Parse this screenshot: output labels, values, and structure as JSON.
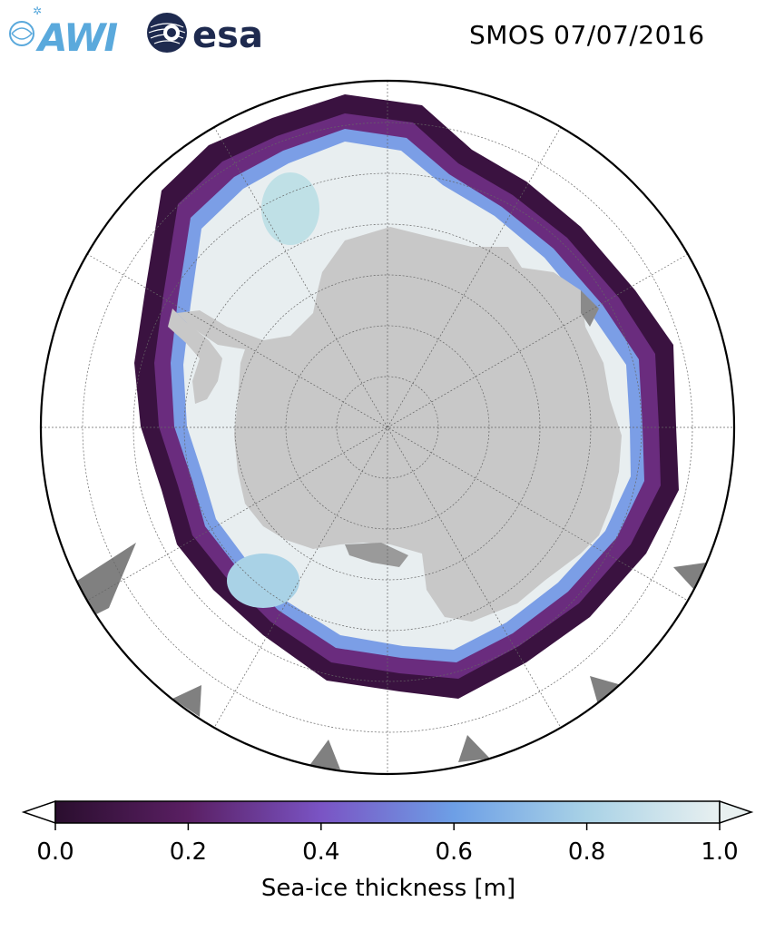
{
  "header": {
    "logos": [
      {
        "name": "awi-logo",
        "text": "AWI",
        "color": "#5aa9dc"
      },
      {
        "name": "esa-logo",
        "text": "esa",
        "color": "#1e2a4f"
      }
    ],
    "title": "SMOS 07/07/2016"
  },
  "map": {
    "projection": "south-polar-stereographic",
    "land_color": "#c8c8c8",
    "ocean_color": "#ffffff",
    "grid": true
  },
  "colorbar": {
    "label": "Sea-ice thickness [m]",
    "min": 0.0,
    "max": 1.0,
    "ticks": [
      "0.0",
      "0.2",
      "0.4",
      "0.6",
      "0.8",
      "1.0"
    ],
    "extend": "both",
    "colors": [
      "#2a0e2e",
      "#5a1f63",
      "#7a54c4",
      "#6d9fe6",
      "#a9d2e6",
      "#e8f0f0"
    ]
  }
}
